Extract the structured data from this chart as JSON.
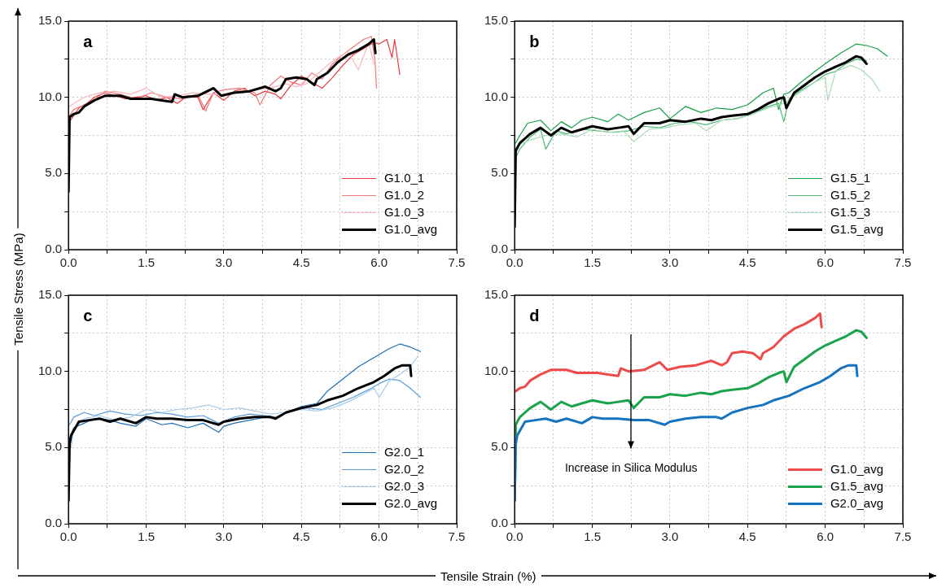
{
  "chart_data": [
    {
      "type": "line",
      "title": "a",
      "ylabel": "Tensile Stress (MPa)",
      "xlim": [
        0,
        7.5
      ],
      "ylim": [
        0,
        15
      ],
      "xticks": [
        {
          "value": 0,
          "label": "0.0"
        },
        {
          "value": 0.75,
          "label": null
        },
        {
          "value": 1.5,
          "label": "1.5"
        },
        {
          "value": 2.25,
          "label": null
        },
        {
          "value": 3,
          "label": "3.0"
        },
        {
          "value": 3.75,
          "label": null
        },
        {
          "value": 4.5,
          "label": "4.5"
        },
        {
          "value": 5.25,
          "label": null
        },
        {
          "value": 6,
          "label": "6.0"
        },
        {
          "value": 6.75,
          "label": null
        },
        {
          "value": 7.5,
          "label": "7.5"
        }
      ],
      "yticks": [
        {
          "value": 0,
          "label": "0.0"
        },
        {
          "value": 2.5,
          "label": null
        },
        {
          "value": 5,
          "label": "5.0"
        },
        {
          "value": 7.5,
          "label": null
        },
        {
          "value": 10,
          "label": "10.0"
        },
        {
          "value": 12.5,
          "label": null
        },
        {
          "value": 15,
          "label": "15.0"
        }
      ],
      "grid": true,
      "legend": "bottom right",
      "series": [
        {
          "name": "G1.0_1",
          "color": "#e8383d",
          "x": [
            0.02,
            0.1,
            0.2,
            0.35,
            0.5,
            0.7,
            0.9,
            1.1,
            1.3,
            1.5,
            1.7,
            1.9,
            2.1,
            2.3,
            2.5,
            2.6,
            2.8,
            3.0,
            3.2,
            3.4,
            3.6,
            3.8,
            4.0,
            4.1,
            4.3,
            4.5,
            4.7,
            4.9,
            5.1,
            5.3,
            5.5,
            5.7,
            5.9,
            6.0,
            6.15,
            6.25,
            6.3,
            6.4
          ],
          "values": [
            8.4,
            8.8,
            9.3,
            9.6,
            10.0,
            10.3,
            10.1,
            9.9,
            10.0,
            10.1,
            9.8,
            10.0,
            9.6,
            10.1,
            10.0,
            9.2,
            10.3,
            9.8,
            10.4,
            10.6,
            10.1,
            10.4,
            10.2,
            9.9,
            10.8,
            11.4,
            11.0,
            10.6,
            11.3,
            12.1,
            12.8,
            13.2,
            13.6,
            13.5,
            13.8,
            12.6,
            13.8,
            11.5
          ]
        },
        {
          "name": "G1.0_2",
          "color": "#f4787c",
          "x": [
            0.02,
            0.1,
            0.3,
            0.5,
            0.7,
            1.0,
            1.3,
            1.6,
            1.9,
            2.2,
            2.5,
            2.65,
            2.8,
            3.0,
            3.3,
            3.6,
            3.7,
            3.9,
            4.1,
            4.3,
            4.5,
            4.7,
            4.9,
            5.1,
            5.3,
            5.5,
            5.7,
            5.85,
            5.92,
            5.95
          ],
          "values": [
            8.8,
            9.2,
            9.5,
            9.8,
            10.4,
            10.2,
            9.9,
            10.3,
            10.0,
            9.9,
            10.2,
            9.1,
            10.3,
            10.5,
            10.6,
            10.3,
            9.5,
            10.8,
            11.4,
            11.0,
            10.8,
            11.6,
            11.2,
            12.2,
            12.8,
            13.3,
            13.8,
            14.0,
            12.5,
            10.6
          ]
        },
        {
          "name": "G1.0_3",
          "color": "#f8b8ba",
          "x": [
            0.02,
            0.1,
            0.3,
            0.6,
            0.9,
            1.2,
            1.5,
            1.8,
            2.1,
            2.4,
            2.7,
            3.0,
            3.3,
            3.6,
            3.9,
            4.2,
            4.4,
            4.6,
            4.8,
            5.0,
            5.2,
            5.4,
            5.6,
            5.8,
            5.9
          ],
          "values": [
            9.4,
            9.6,
            10.0,
            10.3,
            10.4,
            10.2,
            10.6,
            10.0,
            10.1,
            10.3,
            10.2,
            10.2,
            10.4,
            10.5,
            10.6,
            10.9,
            10.7,
            10.9,
            11.5,
            12.1,
            12.6,
            13.0,
            11.8,
            13.6,
            12.2
          ]
        },
        {
          "name": "G1.0_avg",
          "color": "#000000",
          "x": [
            0,
            0.02,
            0.1,
            0.2,
            0.3,
            0.5,
            0.7,
            1.0,
            1.2,
            1.4,
            1.6,
            1.8,
            2.0,
            2.05,
            2.2,
            2.5,
            2.8,
            2.95,
            3.2,
            3.5,
            3.8,
            4.0,
            4.1,
            4.2,
            4.4,
            4.6,
            4.75,
            4.8,
            5.0,
            5.2,
            5.4,
            5.6,
            5.8,
            5.9,
            5.93
          ],
          "values": [
            3.8,
            8.7,
            8.9,
            9.0,
            9.4,
            9.8,
            10.1,
            10.1,
            9.9,
            9.9,
            9.9,
            9.8,
            9.7,
            10.2,
            10.0,
            10.1,
            10.6,
            10.1,
            10.3,
            10.4,
            10.7,
            10.4,
            10.6,
            11.2,
            11.3,
            11.2,
            10.8,
            11.2,
            11.6,
            12.3,
            12.8,
            13.1,
            13.5,
            13.8,
            12.9
          ]
        }
      ]
    },
    {
      "type": "line",
      "title": "b",
      "xlim": [
        0,
        7.5
      ],
      "ylim": [
        0,
        15
      ],
      "xticks": [
        {
          "value": 0,
          "label": "0.0"
        },
        {
          "value": 0.75,
          "label": null
        },
        {
          "value": 1.5,
          "label": "1.5"
        },
        {
          "value": 2.25,
          "label": null
        },
        {
          "value": 3,
          "label": "3.0"
        },
        {
          "value": 3.75,
          "label": null
        },
        {
          "value": 4.5,
          "label": "4.5"
        },
        {
          "value": 5.25,
          "label": null
        },
        {
          "value": 6,
          "label": "6.0"
        },
        {
          "value": 6.75,
          "label": null
        },
        {
          "value": 7.5,
          "label": "7.5"
        }
      ],
      "yticks": [
        {
          "value": 0,
          "label": "0.0"
        },
        {
          "value": 2.5,
          "label": null
        },
        {
          "value": 5,
          "label": "5.0"
        },
        {
          "value": 7.5,
          "label": null
        },
        {
          "value": 10,
          "label": "10.0"
        },
        {
          "value": 12.5,
          "label": null
        },
        {
          "value": 15,
          "label": "15.0"
        }
      ],
      "grid": true,
      "legend": "bottom right",
      "series": [
        {
          "name": "G1.5_1",
          "color": "#16a047",
          "x": [
            0.02,
            0.1,
            0.25,
            0.5,
            0.7,
            0.9,
            1.1,
            1.3,
            1.5,
            1.8,
            2.0,
            2.2,
            2.5,
            2.8,
            3.0,
            3.3,
            3.6,
            3.9,
            4.2,
            4.5,
            4.8,
            5.0,
            5.1,
            5.2,
            5.3,
            5.5,
            5.8,
            6.0,
            6.3,
            6.5,
            6.6,
            6.8,
            7.0,
            7.2
          ],
          "values": [
            7.0,
            7.5,
            8.3,
            8.5,
            7.8,
            8.4,
            8.0,
            8.5,
            8.7,
            8.4,
            8.9,
            8.5,
            9.0,
            9.3,
            8.6,
            9.4,
            9.0,
            9.3,
            9.2,
            9.5,
            10.3,
            10.6,
            9.2,
            10.2,
            10.3,
            10.9,
            11.7,
            12.2,
            12.9,
            13.3,
            13.5,
            13.4,
            13.2,
            12.7
          ]
        },
        {
          "name": "G1.5_2",
          "color": "#4fb878",
          "x": [
            0.02,
            0.1,
            0.3,
            0.5,
            0.6,
            0.8,
            1.0,
            1.3,
            1.6,
            1.9,
            2.2,
            2.5,
            2.8,
            3.1,
            3.4,
            3.7,
            4.0,
            4.3,
            4.6,
            4.9,
            5.1,
            5.2,
            5.3,
            5.5,
            5.8,
            6.0,
            6.2,
            6.4,
            6.6,
            6.8
          ],
          "values": [
            6.0,
            6.6,
            7.4,
            7.9,
            6.6,
            7.8,
            7.6,
            7.9,
            7.8,
            7.7,
            7.8,
            8.1,
            8.0,
            8.3,
            8.4,
            8.2,
            8.5,
            8.6,
            8.9,
            9.4,
            9.6,
            8.4,
            9.9,
            10.4,
            11.0,
            11.5,
            11.7,
            12.2,
            12.5,
            12.4
          ]
        },
        {
          "name": "G1.5_3",
          "color": "#a8dbb8",
          "x": [
            0.02,
            0.1,
            0.3,
            0.6,
            0.9,
            1.2,
            1.5,
            1.8,
            2.1,
            2.3,
            2.6,
            2.9,
            3.2,
            3.5,
            3.7,
            4.0,
            4.3,
            4.6,
            4.9,
            5.2,
            5.5,
            5.8,
            6.0,
            6.05,
            6.2,
            6.5,
            6.7,
            6.9,
            7.05
          ],
          "values": [
            6.3,
            6.9,
            7.2,
            7.5,
            7.6,
            7.4,
            7.9,
            7.7,
            7.8,
            7.1,
            7.9,
            8.0,
            8.2,
            8.3,
            7.8,
            8.5,
            8.6,
            8.9,
            9.3,
            9.6,
            10.3,
            11.0,
            11.3,
            9.8,
            11.7,
            12.1,
            11.8,
            11.2,
            10.4
          ]
        },
        {
          "name": "G1.5_avg",
          "color": "#000000",
          "x": [
            0,
            0.02,
            0.1,
            0.3,
            0.5,
            0.7,
            0.9,
            1.1,
            1.3,
            1.5,
            1.8,
            2.0,
            2.2,
            2.3,
            2.5,
            2.8,
            3.0,
            3.3,
            3.6,
            3.8,
            4.0,
            4.2,
            4.5,
            4.7,
            4.9,
            5.1,
            5.2,
            5.25,
            5.4,
            5.6,
            5.8,
            6.0,
            6.2,
            6.4,
            6.6,
            6.7,
            6.8
          ],
          "values": [
            1.5,
            6.5,
            7.0,
            7.6,
            8.0,
            7.5,
            8.0,
            7.7,
            7.9,
            8.1,
            7.9,
            8.0,
            8.1,
            7.6,
            8.3,
            8.3,
            8.5,
            8.4,
            8.6,
            8.5,
            8.7,
            8.8,
            8.9,
            9.2,
            9.6,
            9.9,
            10.0,
            9.3,
            10.3,
            10.8,
            11.3,
            11.7,
            12.0,
            12.3,
            12.7,
            12.6,
            12.2
          ]
        }
      ]
    },
    {
      "type": "line",
      "title": "c",
      "xlabel": "Tensile Strain (%)",
      "xlim": [
        0,
        7.5
      ],
      "ylim": [
        0,
        15
      ],
      "xticks": [
        {
          "value": 0,
          "label": "0.0"
        },
        {
          "value": 0.75,
          "label": null
        },
        {
          "value": 1.5,
          "label": "1.5"
        },
        {
          "value": 2.25,
          "label": null
        },
        {
          "value": 3,
          "label": "3.0"
        },
        {
          "value": 3.75,
          "label": null
        },
        {
          "value": 4.5,
          "label": "4.5"
        },
        {
          "value": 5.25,
          "label": null
        },
        {
          "value": 6,
          "label": "6.0"
        },
        {
          "value": 6.75,
          "label": null
        },
        {
          "value": 7.5,
          "label": "7.5"
        }
      ],
      "yticks": [
        {
          "value": 0,
          "label": "0.0"
        },
        {
          "value": 2.5,
          "label": null
        },
        {
          "value": 5,
          "label": "5.0"
        },
        {
          "value": 7.5,
          "label": null
        },
        {
          "value": 10,
          "label": "10.0"
        },
        {
          "value": 12.5,
          "label": null
        },
        {
          "value": 15,
          "label": "15.0"
        }
      ],
      "grid": true,
      "legend": "bottom right",
      "series": [
        {
          "name": "G2.0_1",
          "color": "#1f6fb5",
          "x": [
            0.02,
            0.1,
            0.3,
            0.5,
            0.8,
            1.0,
            1.3,
            1.5,
            1.8,
            2.0,
            2.3,
            2.6,
            2.9,
            3.0,
            3.2,
            3.5,
            3.8,
            4.0,
            4.2,
            4.5,
            4.8,
            5.0,
            5.3,
            5.6,
            5.9,
            6.2,
            6.4,
            6.6,
            6.8
          ],
          "values": [
            5.6,
            6.3,
            6.6,
            6.9,
            6.8,
            6.6,
            6.4,
            6.9,
            6.5,
            6.6,
            6.3,
            6.6,
            6.0,
            6.4,
            6.6,
            6.8,
            7.0,
            6.9,
            7.3,
            7.7,
            7.9,
            8.7,
            9.5,
            10.3,
            10.9,
            11.5,
            11.8,
            11.6,
            11.3
          ]
        },
        {
          "name": "G2.0_2",
          "color": "#5b9bd5",
          "x": [
            0.02,
            0.1,
            0.3,
            0.5,
            0.8,
            1.1,
            1.4,
            1.7,
            2.0,
            2.3,
            2.6,
            2.9,
            3.2,
            3.5,
            3.8,
            4.0,
            4.3,
            4.6,
            4.9,
            5.2,
            5.5,
            5.8,
            6.0,
            6.2,
            6.4,
            6.6,
            6.8
          ],
          "values": [
            6.5,
            7.0,
            7.3,
            7.1,
            7.4,
            7.2,
            7.1,
            7.3,
            7.2,
            7.0,
            7.1,
            6.6,
            7.0,
            7.2,
            7.1,
            7.0,
            7.4,
            7.6,
            7.5,
            7.9,
            8.3,
            8.8,
            9.2,
            9.5,
            9.4,
            8.9,
            8.3
          ]
        },
        {
          "name": "G2.0_3",
          "color": "#a9cbe8",
          "x": [
            0.05,
            0.1,
            0.3,
            0.6,
            0.9,
            1.2,
            1.5,
            1.8,
            2.1,
            2.4,
            2.7,
            3.0,
            3.3,
            3.6,
            3.9,
            4.2,
            4.5,
            4.8,
            5.1,
            5.4,
            5.7,
            5.9,
            6.0,
            6.2,
            6.4,
            6.6,
            6.75
          ],
          "values": [
            5.0,
            6.2,
            6.9,
            7.1,
            6.8,
            7.0,
            7.5,
            7.3,
            7.5,
            7.6,
            7.8,
            7.5,
            7.6,
            7.4,
            7.2,
            7.3,
            7.5,
            7.4,
            7.6,
            8.0,
            8.5,
            8.9,
            8.3,
            9.4,
            9.8,
            10.3,
            11.0
          ]
        },
        {
          "name": "G2.0_avg",
          "color": "#000000",
          "x": [
            0,
            0.02,
            0.05,
            0.2,
            0.4,
            0.6,
            0.8,
            1.0,
            1.3,
            1.5,
            1.7,
            2.0,
            2.3,
            2.6,
            2.9,
            3.0,
            3.3,
            3.6,
            3.9,
            4.0,
            4.2,
            4.5,
            4.8,
            5.0,
            5.3,
            5.6,
            5.9,
            6.1,
            6.3,
            6.45,
            6.6,
            6.62
          ],
          "values": [
            1.5,
            5.2,
            5.8,
            6.7,
            6.8,
            6.9,
            6.7,
            6.9,
            6.6,
            7.0,
            6.9,
            6.9,
            6.8,
            6.8,
            6.5,
            6.7,
            6.9,
            7.0,
            7.0,
            6.9,
            7.3,
            7.6,
            7.8,
            8.1,
            8.4,
            8.9,
            9.3,
            9.7,
            10.2,
            10.4,
            10.4,
            9.7
          ]
        }
      ]
    },
    {
      "type": "line",
      "title": "d",
      "annotations": [
        "Increase in Silica Modulus"
      ],
      "xlim": [
        0,
        7.5
      ],
      "ylim": [
        0,
        15
      ],
      "xticks": [
        {
          "value": 0,
          "label": "0.0"
        },
        {
          "value": 0.75,
          "label": null
        },
        {
          "value": 1.5,
          "label": "1.5"
        },
        {
          "value": 2.25,
          "label": null
        },
        {
          "value": 3,
          "label": "3.0"
        },
        {
          "value": 3.75,
          "label": null
        },
        {
          "value": 4.5,
          "label": "4.5"
        },
        {
          "value": 5.25,
          "label": null
        },
        {
          "value": 6,
          "label": "6.0"
        },
        {
          "value": 6.75,
          "label": null
        },
        {
          "value": 7.5,
          "label": "7.5"
        }
      ],
      "yticks": [
        {
          "value": 0,
          "label": "0.0"
        },
        {
          "value": 2.5,
          "label": null
        },
        {
          "value": 5,
          "label": "5.0"
        },
        {
          "value": 7.5,
          "label": null
        },
        {
          "value": 10,
          "label": "10.0"
        },
        {
          "value": 12.5,
          "label": null
        },
        {
          "value": 15,
          "label": "15.0"
        }
      ],
      "grid": true,
      "legend": "bottom right",
      "series": [
        {
          "name": "G1.0_avg",
          "color": "#ee4a4a",
          "x": [
            0.02,
            0.1,
            0.2,
            0.3,
            0.5,
            0.7,
            1.0,
            1.2,
            1.4,
            1.6,
            1.8,
            2.0,
            2.05,
            2.2,
            2.5,
            2.8,
            2.95,
            3.2,
            3.5,
            3.8,
            4.0,
            4.1,
            4.2,
            4.4,
            4.6,
            4.75,
            4.8,
            5.0,
            5.2,
            5.4,
            5.6,
            5.8,
            5.9,
            5.93
          ],
          "values": [
            8.7,
            8.9,
            9.0,
            9.4,
            9.8,
            10.1,
            10.1,
            9.9,
            9.9,
            9.9,
            9.8,
            9.7,
            10.2,
            10.0,
            10.1,
            10.6,
            10.1,
            10.3,
            10.4,
            10.7,
            10.4,
            10.6,
            11.2,
            11.3,
            11.2,
            10.8,
            11.2,
            11.6,
            12.3,
            12.8,
            13.1,
            13.5,
            13.8,
            12.9
          ]
        },
        {
          "name": "G1.5_avg",
          "color": "#1aa34a",
          "x": [
            0,
            0.02,
            0.1,
            0.3,
            0.5,
            0.7,
            0.9,
            1.1,
            1.3,
            1.5,
            1.8,
            2.0,
            2.2,
            2.3,
            2.5,
            2.8,
            3.0,
            3.3,
            3.6,
            3.8,
            4.0,
            4.2,
            4.5,
            4.7,
            4.9,
            5.1,
            5.2,
            5.25,
            5.4,
            5.6,
            5.8,
            6.0,
            6.2,
            6.4,
            6.6,
            6.7,
            6.8
          ],
          "values": [
            1.5,
            6.5,
            7.0,
            7.6,
            8.0,
            7.5,
            8.0,
            7.7,
            7.9,
            8.1,
            7.9,
            8.0,
            8.1,
            7.6,
            8.3,
            8.3,
            8.5,
            8.4,
            8.6,
            8.5,
            8.7,
            8.8,
            8.9,
            9.2,
            9.6,
            9.9,
            10.0,
            9.3,
            10.3,
            10.8,
            11.3,
            11.7,
            12.0,
            12.3,
            12.7,
            12.6,
            12.2
          ]
        },
        {
          "name": "G2.0_avg",
          "color": "#1673c0",
          "x": [
            0,
            0.02,
            0.05,
            0.2,
            0.4,
            0.6,
            0.8,
            1.0,
            1.3,
            1.5,
            1.7,
            2.0,
            2.3,
            2.6,
            2.9,
            3.0,
            3.3,
            3.6,
            3.9,
            4.0,
            4.2,
            4.5,
            4.8,
            5.0,
            5.3,
            5.6,
            5.9,
            6.1,
            6.3,
            6.45,
            6.6,
            6.62
          ],
          "values": [
            1.5,
            5.2,
            5.8,
            6.7,
            6.8,
            6.9,
            6.7,
            6.9,
            6.6,
            7.0,
            6.9,
            6.9,
            6.8,
            6.8,
            6.5,
            6.7,
            6.9,
            7.0,
            7.0,
            6.9,
            7.3,
            7.6,
            7.8,
            8.1,
            8.4,
            8.9,
            9.3,
            9.7,
            10.2,
            10.4,
            10.4,
            9.7
          ]
        }
      ]
    }
  ]
}
